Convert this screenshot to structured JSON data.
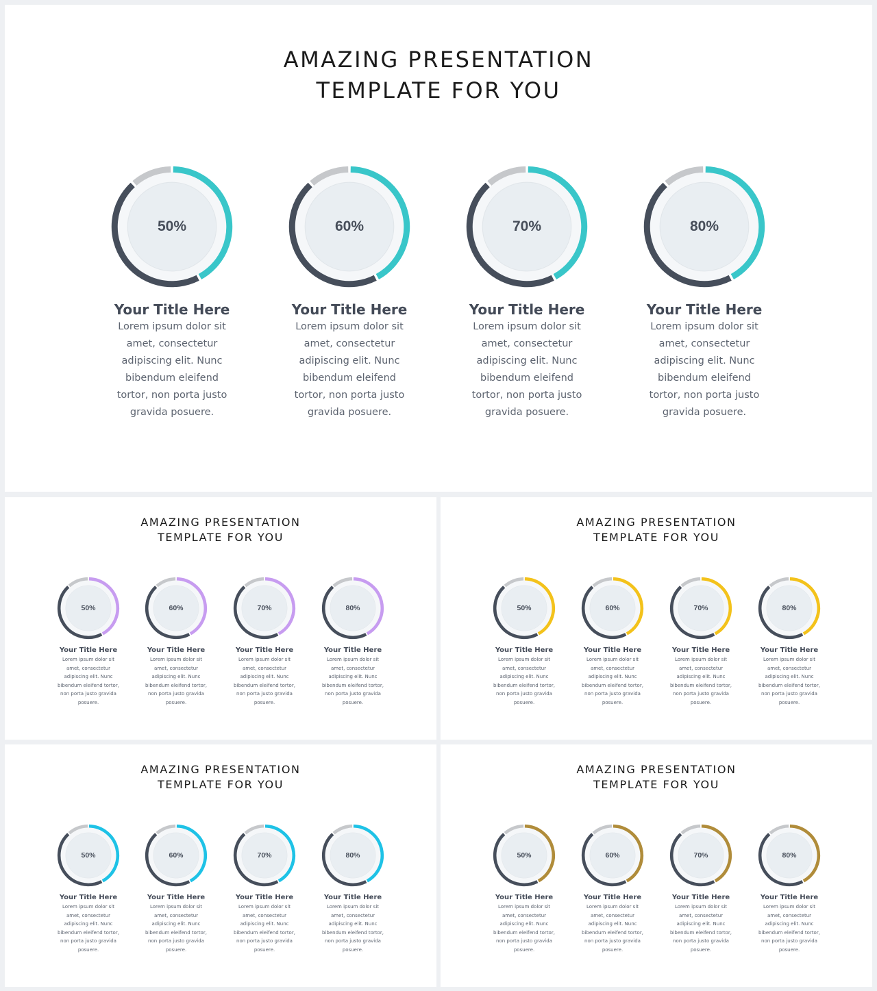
{
  "heading": {
    "line1": "AMAZING PRESENTATION",
    "line2": "TEMPLATE FOR YOU"
  },
  "items": [
    {
      "value": 0.5,
      "label": "50%",
      "title": "Your Title Here",
      "body": "Lorem ipsum dolor sit amet, consectetur adipiscing elit. Nunc bibendum eleifend tortor, non porta justo gravida posuere."
    },
    {
      "value": 0.6,
      "label": "60%",
      "title": "Your Title Here",
      "body": "Lorem ipsum dolor sit amet, consectetur adipiscing elit. Nunc bibendum eleifend tortor, non porta justo gravida posuere."
    },
    {
      "value": 0.7,
      "label": "70%",
      "title": "Your Title Here",
      "body": "Lorem ipsum dolor sit amet, consectetur adipiscing elit. Nunc bibendum eleifend tortor, non porta justo gravida posuere."
    },
    {
      "value": 0.8,
      "label": "80%",
      "title": "Your Title Here",
      "body": "Lorem ipsum dolor sit amet, consectetur adipiscing elit. Nunc bibendum eleifend tortor, non porta justo gravida posuere."
    }
  ],
  "colors": {
    "dark": "#464e5b",
    "gray": "#c6c8cb",
    "inner_bg": "#e9eef2",
    "inner_ring": "#f5f7f9",
    "accent_main": "#39c6c9",
    "accent_1": "#c79cf0",
    "accent_2": "#f3c21b",
    "accent_3": "#1ec2e6",
    "accent_4": "#b08c3a"
  }
}
